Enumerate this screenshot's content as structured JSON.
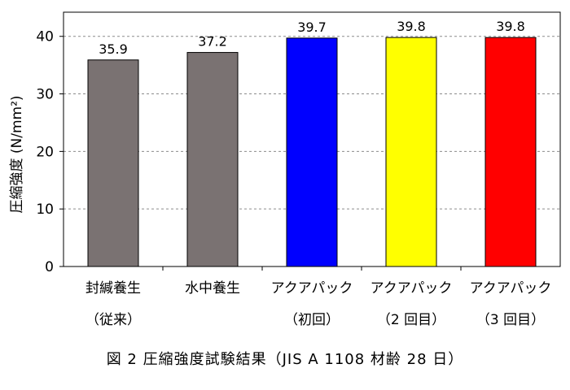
{
  "chart_data": {
    "type": "bar",
    "categories": [
      {
        "line1": "封緘養生",
        "line2": "（従来）"
      },
      {
        "line1": "水中養生",
        "line2": ""
      },
      {
        "line1": "アクアパック",
        "line2": "（初回）"
      },
      {
        "line1": "アクアパック",
        "line2": "（2 回目）"
      },
      {
        "line1": "アクアパック",
        "line2": "（3 回目）"
      }
    ],
    "values": [
      35.9,
      37.2,
      39.7,
      39.8,
      39.8
    ],
    "value_labels": [
      "35.9",
      "37.2",
      "39.7",
      "39.8",
      "39.8"
    ],
    "colors": [
      "#7a7272",
      "#7a7272",
      "#0000ff",
      "#ffff00",
      "#ff0000"
    ],
    "ylabel": "圧縮強度 (N/mm²)",
    "ylim": [
      0,
      40
    ],
    "yticks": [
      0,
      10,
      20,
      30,
      40
    ],
    "grid": true,
    "title": "図 2  圧縮強度試験結果（JIS A 1108  材齢 28 日）"
  }
}
